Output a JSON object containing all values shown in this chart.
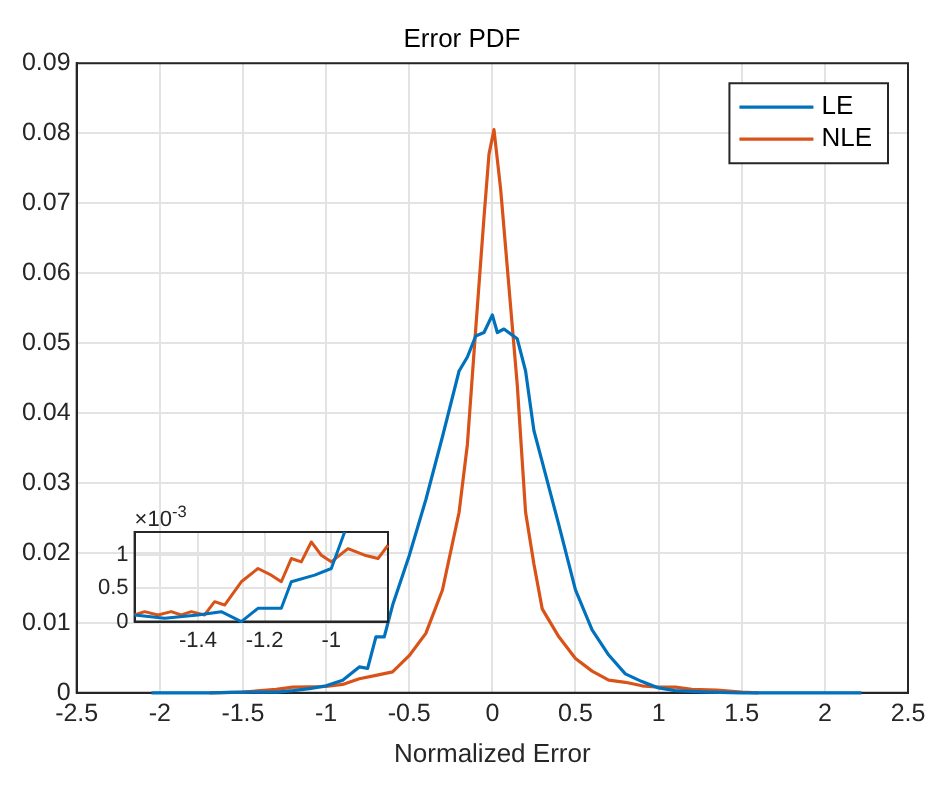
{
  "chart_data": [
    {
      "type": "line",
      "title": "Error PDF",
      "xlabel": "Normalized Error",
      "xlim": [
        -2.5,
        2.5
      ],
      "xticks": [
        -2.5,
        -2,
        -1.5,
        -1,
        -0.5,
        0,
        0.5,
        1,
        1.5,
        2,
        2.5
      ],
      "ylim": [
        0,
        0.09
      ],
      "yticks": [
        0,
        0.01,
        0.02,
        0.03,
        0.04,
        0.05,
        0.06,
        0.07,
        0.08,
        0.09
      ],
      "grid": true,
      "legend": "top right",
      "line_style": "solid",
      "series": [
        {
          "name": "LE",
          "color": "#0072bd",
          "x": [
            -2.05,
            -1.7,
            -1.5,
            -1.3,
            -1.2,
            -1.1,
            -1.0,
            -0.9,
            -0.8,
            -0.75,
            -0.7,
            -0.65,
            -0.6,
            -0.5,
            -0.4,
            -0.3,
            -0.2,
            -0.15,
            -0.1,
            -0.05,
            0,
            0.03,
            0.07,
            0.15,
            0.2,
            0.25,
            0.3,
            0.4,
            0.5,
            0.6,
            0.7,
            0.8,
            0.9,
            1.0,
            1.1,
            1.3,
            1.5,
            2.22
          ],
          "values": [
            0,
            0,
            0.0001,
            0.0001,
            0.0003,
            0.0006,
            0.001,
            0.0018,
            0.0037,
            0.0035,
            0.008,
            0.008,
            0.0125,
            0.0196,
            0.0276,
            0.0366,
            0.046,
            0.048,
            0.051,
            0.0515,
            0.054,
            0.0515,
            0.052,
            0.0506,
            0.046,
            0.0375,
            0.033,
            0.024,
            0.0147,
            0.009,
            0.0054,
            0.0027,
            0.0016,
            0.0007,
            0.0003,
            0.0001,
            0,
            0
          ]
        },
        {
          "name": "NLE",
          "color": "#d95319",
          "x": [
            -1.7,
            -1.5,
            -1.3,
            -1.2,
            -1.0,
            -0.9,
            -0.8,
            -0.7,
            -0.6,
            -0.5,
            -0.4,
            -0.3,
            -0.2,
            -0.15,
            -0.1,
            -0.05,
            -0.02,
            0.01,
            0.05,
            0.1,
            0.15,
            0.2,
            0.25,
            0.3,
            0.4,
            0.5,
            0.6,
            0.7,
            0.8,
            0.9,
            1.0,
            1.1,
            1.2,
            1.35,
            1.5,
            1.6
          ],
          "values": [
            0,
            0.0001,
            0.0005,
            0.0008,
            0.0009,
            0.0012,
            0.002,
            0.0025,
            0.003,
            0.0053,
            0.0085,
            0.0147,
            0.0258,
            0.0355,
            0.052,
            0.068,
            0.077,
            0.0805,
            0.072,
            0.058,
            0.044,
            0.0258,
            0.0184,
            0.012,
            0.008,
            0.0049,
            0.0031,
            0.0018,
            0.0015,
            0.001,
            0.0008,
            0.0008,
            0.0005,
            0.0004,
            0.0001,
            0
          ]
        }
      ]
    },
    {
      "type": "line",
      "xlim": [
        -1.59,
        -0.83
      ],
      "xticks": [
        -1.4,
        -1.2,
        -1
      ],
      "ylim": [
        0,
        1.35
      ],
      "yticks": [
        0,
        0.5,
        1
      ],
      "grid": true,
      "annotations": [
        "×10$^{-3}$"
      ],
      "line_style": "solid",
      "series": [
        {
          "color": "#0072bd",
          "x": [
            -1.59,
            -1.5,
            -1.4,
            -1.33,
            -1.27,
            -1.22,
            -1.15,
            -1.12,
            -1.05,
            -1.0,
            -0.96
          ],
          "values": [
            0.1,
            0.05,
            0.1,
            0.15,
            0,
            0.2,
            0.2,
            0.6,
            0.7,
            0.8,
            1.35
          ]
        },
        {
          "color": "#d95319",
          "x": [
            -1.59,
            -1.56,
            -1.52,
            -1.48,
            -1.45,
            -1.42,
            -1.38,
            -1.35,
            -1.32,
            -1.27,
            -1.22,
            -1.18,
            -1.15,
            -1.12,
            -1.09,
            -1.06,
            -1.03,
            -1.0,
            -0.95,
            -0.9,
            -0.86,
            -0.83
          ],
          "values": [
            0.1,
            0.15,
            0.1,
            0.15,
            0.1,
            0.15,
            0.1,
            0.3,
            0.25,
            0.6,
            0.8,
            0.7,
            0.6,
            0.95,
            0.9,
            1.2,
            1.0,
            0.9,
            1.1,
            1.0,
            0.95,
            1.15
          ]
        }
      ]
    }
  ]
}
